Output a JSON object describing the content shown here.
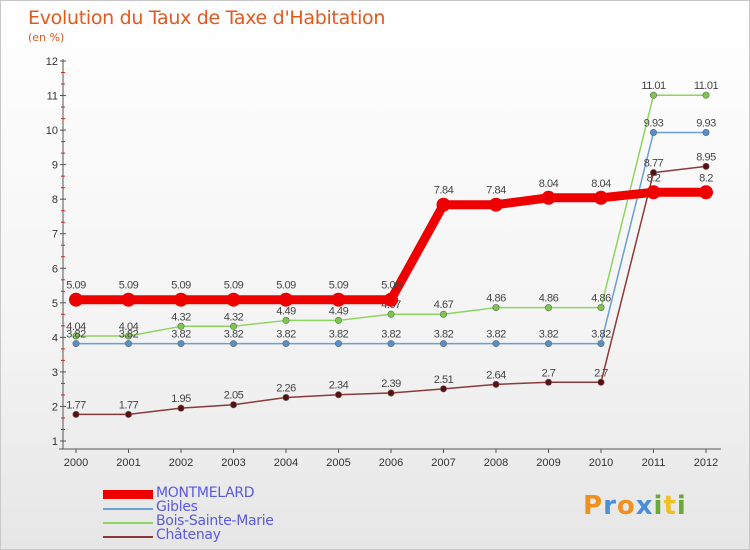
{
  "title": "Evolution du Taux de Taxe d'Habitation",
  "subtitle": "(en %)",
  "logo": {
    "letters": [
      "P",
      "r",
      "o",
      "x",
      "i",
      "t",
      "i"
    ],
    "colors": [
      "#f0901e",
      "#4a8fd8",
      "#f0901e",
      "#4a8fd8",
      "#6aa83a",
      "#f0c020",
      "#6aa83a"
    ]
  },
  "chart_data": {
    "type": "line",
    "x": [
      "2000",
      "2001",
      "2002",
      "2003",
      "2004",
      "2005",
      "2006",
      "2007",
      "2008",
      "2009",
      "2010",
      "2011",
      "2012"
    ],
    "ylim": [
      1,
      12
    ],
    "yticks": [
      "1",
      "2",
      "3",
      "4",
      "5",
      "6",
      "7",
      "8",
      "9",
      "10",
      "11",
      "12"
    ],
    "grid": false,
    "legend_position": "bottom-left",
    "series": [
      {
        "name": "Bois-Sainte-Marie",
        "color": "#8fd460",
        "marker": "#7cc84a",
        "values": [
          4.04,
          4.04,
          4.32,
          4.32,
          4.49,
          4.49,
          4.67,
          4.67,
          4.86,
          4.86,
          4.86,
          11.01,
          11.01
        ],
        "labels": [
          "4.04",
          "4.04",
          "4.32",
          "4.32",
          "4.49",
          "4.49",
          "4.67",
          "4.67",
          "4.86",
          "4.86",
          "4.86",
          "11.01",
          "11.01"
        ]
      },
      {
        "name": "Gibles",
        "color": "#6a9fd4",
        "marker": "#5590cc",
        "values": [
          3.82,
          3.82,
          3.82,
          3.82,
          3.82,
          3.82,
          3.82,
          3.82,
          3.82,
          3.82,
          3.82,
          9.93,
          9.93
        ],
        "labels": [
          "3.82",
          "3.82",
          "3.82",
          "3.82",
          "3.82",
          "3.82",
          "3.82",
          "3.82",
          "3.82",
          "3.82",
          "3.82",
          "9.93",
          "9.93"
        ]
      },
      {
        "name": "Châtenay",
        "color": "#8a3a3a",
        "marker": "#5a1010",
        "values": [
          1.77,
          1.77,
          1.95,
          2.05,
          2.26,
          2.34,
          2.39,
          2.51,
          2.64,
          2.7,
          2.7,
          8.77,
          8.95
        ],
        "labels": [
          "1.77",
          "1.77",
          "1.95",
          "2.05",
          "2.26",
          "2.34",
          "2.39",
          "2.51",
          "2.64",
          "2.7",
          "2.7",
          "8.77",
          "8.95"
        ]
      },
      {
        "name": "MONTMELARD",
        "color": "#ee0000",
        "marker": "#ee0000",
        "values": [
          5.09,
          5.09,
          5.09,
          5.09,
          5.09,
          5.09,
          5.09,
          7.84,
          7.84,
          8.04,
          8.04,
          8.2,
          8.2
        ],
        "labels": [
          "5.09",
          "5.09",
          "5.09",
          "5.09",
          "5.09",
          "5.09",
          "5.09",
          "7.84",
          "7.84",
          "8.04",
          "8.04",
          "8.2",
          "8.2"
        ]
      }
    ],
    "legend": [
      {
        "name": "MONTMELARD",
        "color": "#ee0000"
      },
      {
        "name": "Gibles",
        "color": "#6a9fd4"
      },
      {
        "name": "Bois-Sainte-Marie",
        "color": "#8fd460"
      },
      {
        "name": "Châtenay",
        "color": "#8a3a3a"
      }
    ]
  }
}
